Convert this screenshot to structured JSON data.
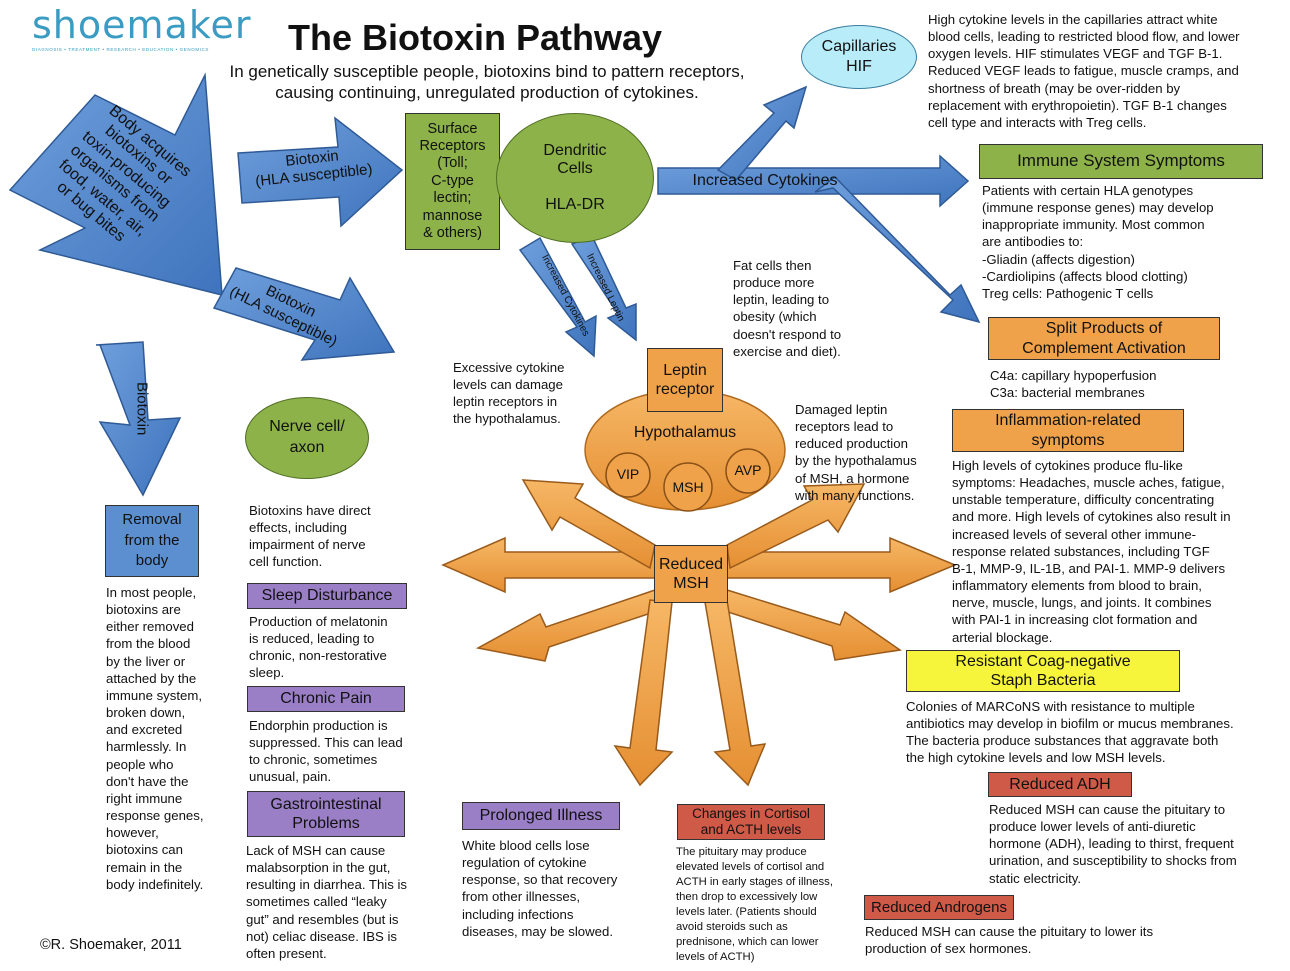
{
  "logo": {
    "name": "shoemaker",
    "tagline": "DIAGNOSIS • TREATMENT • RESEARCH • EDUCATION • GENOMICS"
  },
  "title": "The Biotoxin Pathway",
  "subtitle_line1": "In genetically susceptible people, biotoxins bind to pattern receptors,",
  "subtitle_line2": "causing continuing, unregulated production of cytokines.",
  "left_arrow": {
    "lines": [
      "Body acquires",
      "biotoxins or",
      "toxin-producing",
      "organisms from",
      "food, water, air,",
      "or bug bites"
    ]
  },
  "biotoxin_arrow_1": {
    "lines": [
      "Biotoxin",
      "(HLA susceptible)"
    ]
  },
  "biotoxin_arrow_2": {
    "lines": [
      "Biotoxin",
      "(HLA susceptible)"
    ]
  },
  "biotoxin_arrow_down": "Biotoxin",
  "surface_receptors": {
    "lines": [
      "Surface",
      "Receptors",
      "(Toll;",
      "C-type",
      "lectin;",
      "mannose",
      "& others)"
    ]
  },
  "dendritic_cells": {
    "label": "Dendritic",
    "label2": "Cells",
    "sub": "HLA-DR"
  },
  "increased_cytokines_arrow": "Increased Cytokines",
  "small_arrow_cytokines": "Increased Cytokines",
  "small_arrow_leptin": "Increased Leptin",
  "capillaries": {
    "line1": "Capillaries",
    "line2": "HIF"
  },
  "capillaries_text": [
    "High cytokine levels in the capillaries attract white",
    "blood cells, leading to restricted blood flow, and lower",
    "oxygen levels.  HIF stimulates VEGF and TGF B-1.",
    "Reduced VEGF leads to fatigue, muscle cramps, and",
    "shortness of breath (may be over-ridden by",
    "replacement with erythropoietin).  TGF B-1 changes",
    "cell type and interacts with Treg cells."
  ],
  "immune_symptoms": {
    "title": "Immune System Symptoms",
    "text": [
      "Patients with certain HLA genotypes",
      "(immune response genes) may develop",
      "inappropriate immunity.  Most common",
      "are antibodies to:",
      "-Gliadin (affects digestion)",
      "-Cardiolipins (affects blood clotting)",
      "Treg cells:  Pathogenic T cells"
    ]
  },
  "fat_cells_text": [
    "Fat cells then",
    "produce more",
    "leptin, leading to",
    "obesity (which",
    "doesn't respond to",
    "exercise and diet)."
  ],
  "complement": {
    "title1": "Split Products of",
    "title2": "Complement Activation",
    "text": [
      "C4a:  capillary hypoperfusion",
      "C3a:  bacterial membranes"
    ]
  },
  "excessive_cytokine_text": [
    "Excessive cytokine",
    "levels can damage",
    "leptin receptors in",
    "the hypothalamus."
  ],
  "leptin_receptor": {
    "line1": "Leptin",
    "line2": "receptor"
  },
  "hypothalamus": {
    "label": "Hypothalamus",
    "vip": "VIP",
    "msh": "MSH",
    "avp": "AVP"
  },
  "damaged_leptin_text": [
    "Damaged leptin",
    "receptors lead to",
    "reduced production",
    "by the hypothalamus",
    "of MSH, a hormone",
    "with many functions."
  ],
  "inflammation": {
    "title1": "Inflammation-related",
    "title2": "symptoms",
    "text": [
      "High levels of cytokines produce flu-like",
      "symptoms: Headaches, muscle aches, fatigue,",
      "unstable temperature, difficulty concentrating",
      "and more.  High levels of cytokines also result in",
      "increased levels of several other immune-",
      "response related substances, including TGF",
      "B-1, MMP-9, IL-1B, and PAI-1.  MMP-9 delivers",
      "inflammatory elements from blood to brain,",
      "nerve, muscle, lungs, and joints.  It combines",
      "with PAI-1 in increasing clot formation and",
      "arterial blockage."
    ]
  },
  "nerve_cell": {
    "line1": "Nerve cell/",
    "line2": "axon"
  },
  "nerve_text": [
    "Biotoxins have direct",
    "effects, including",
    "impairment of nerve",
    "cell function."
  ],
  "removal": {
    "lines": [
      "Removal",
      "from the",
      "body"
    ],
    "text": [
      "In most people,",
      "biotoxins are",
      "either removed",
      "from the blood",
      "by the liver or",
      "attached by the",
      "immune system,",
      "broken down,",
      "and excreted",
      "harmlessly.  In",
      "people who",
      "don't have the",
      "right immune",
      "response genes,",
      "however,",
      "biotoxins can",
      "remain in the",
      "body indefinitely."
    ]
  },
  "reduced_msh": {
    "line1": "Reduced",
    "line2": "MSH"
  },
  "sleep": {
    "title": "Sleep Disturbance",
    "text": [
      "Production of melatonin",
      "is reduced, leading to",
      "chronic, non-restorative",
      "sleep."
    ]
  },
  "pain": {
    "title": "Chronic Pain",
    "text": [
      "Endorphin production is",
      "suppressed.  This can lead",
      "to chronic, sometimes",
      "unusual, pain."
    ]
  },
  "gi": {
    "title1": "Gastrointestinal",
    "title2": "Problems",
    "text": [
      "Lack of MSH can cause",
      "malabsorption in the gut,",
      "resulting in diarrhea.  This is",
      "sometimes called “leaky",
      "gut” and resembles (but is",
      "not) celiac disease.  IBS is",
      "often present."
    ]
  },
  "prolonged": {
    "title": "Prolonged Illness",
    "text": [
      "White blood cells lose",
      "regulation of cytokine",
      "response, so that recovery",
      "from other illnesses,",
      "including infections",
      "diseases, may be slowed."
    ]
  },
  "cortisol": {
    "title1": "Changes in Cortisol",
    "title2": "and ACTH levels",
    "text": [
      "The pituitary may produce",
      "elevated levels of cortisol and",
      "ACTH in early stages of illness,",
      "then drop to excessively low",
      "levels later.  (Patients should",
      "avoid steroids such as",
      "prednisone, which can lower",
      "levels of ACTH)"
    ]
  },
  "marcons": {
    "title1": "Resistant Coag-negative",
    "title2": "Staph Bacteria",
    "text": [
      "Colonies of MARCoNS with resistance to multiple",
      "antibiotics may develop in biofilm or mucus membranes.",
      "The bacteria produce substances that aggravate both",
      "the high cytokine levels and low MSH levels."
    ]
  },
  "adh": {
    "title": "Reduced ADH",
    "text": [
      "Reduced MSH can cause the pituitary to",
      "produce lower levels of anti-diuretic",
      "hormone (ADH), leading to thirst, frequent",
      "urination, and susceptibility to shocks from",
      "static electricity."
    ]
  },
  "androgens": {
    "title": "Reduced Androgens",
    "text": [
      "Reduced MSH can cause the pituitary to lower its",
      "production of sex hormones."
    ]
  },
  "copyright": "©R. Shoemaker, 2011",
  "colors": {
    "blue": "#5b8fd0",
    "green": "#8db24a",
    "orange": "#f0a24a",
    "purple": "#9a7ec6",
    "red": "#cf5a48",
    "yellow": "#f7f53b",
    "cyan": "#b8ecf8",
    "logo": "#3a9cc2"
  }
}
